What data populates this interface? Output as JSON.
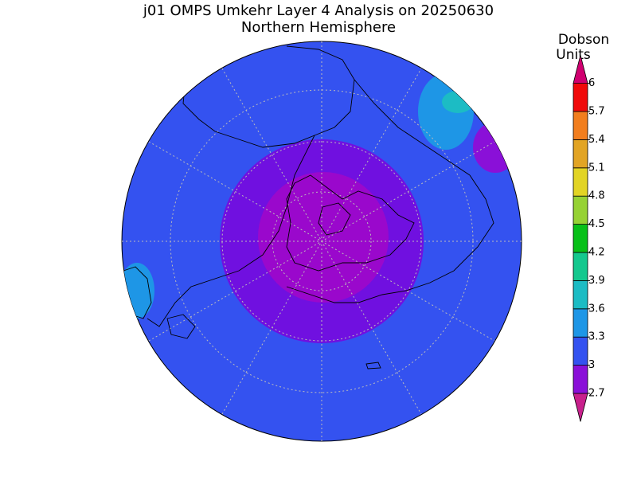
{
  "header": {
    "title": "j01 OMPS Umkehr Layer 4 Analysis on 20250630",
    "subtitle": "Northern Hemisphere"
  },
  "colorbar": {
    "label_lines": [
      "Dobson",
      "Units"
    ],
    "ticks": [
      2.7,
      3,
      3.3,
      3.6,
      3.9,
      4.2,
      4.5,
      4.8,
      5.1,
      5.4,
      5.7,
      6
    ],
    "colors": [
      "#c8208c",
      "#8a10d8",
      "#3452f0",
      "#1e96e6",
      "#1cbcc4",
      "#14c88e",
      "#08c018",
      "#96d234",
      "#e2d424",
      "#e2a424",
      "#f27e1e",
      "#f00a0a",
      "#d00070"
    ]
  }
}
